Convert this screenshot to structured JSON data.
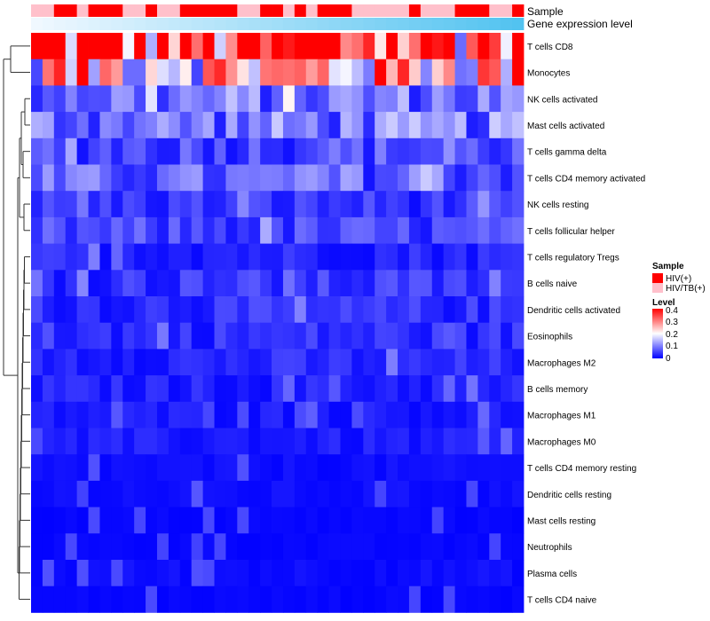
{
  "chart_data": {
    "type": "heatmap",
    "title": "",
    "annotation_labels": {
      "sample": "Sample",
      "expression": "Gene expression level"
    },
    "rows": [
      "T cells CD8",
      "Monocytes",
      "NK cells activated",
      "Mast cells activated",
      "T cells gamma delta",
      "T cells CD4 memory activated",
      "NK cells resting",
      "T cells follicular helper",
      "T cells regulatory  Tregs",
      "B cells naive",
      "Dendritic cells activated",
      "Eosinophils",
      "Macrophages M2",
      "B cells memory",
      "Macrophages M1",
      "Macrophages M0",
      "T cells CD4 memory resting",
      "Dendritic cells resting",
      "Mast cells resting",
      "Neutrophils",
      "Plasma cells",
      "T cells CD4 naive"
    ],
    "n_columns": 43,
    "sample_groups": [
      "HIV/TB(+)",
      "HIV/TB(+)",
      "HIV(+)",
      "HIV(+)",
      "HIV/TB(+)",
      "HIV(+)",
      "HIV(+)",
      "HIV(+)",
      "HIV/TB(+)",
      "HIV/TB(+)",
      "HIV(+)",
      "HIV/TB(+)",
      "HIV/TB(+)",
      "HIV(+)",
      "HIV(+)",
      "HIV(+)",
      "HIV(+)",
      "HIV(+)",
      "HIV/TB(+)",
      "HIV/TB(+)",
      "HIV(+)",
      "HIV(+)",
      "HIV/TB(+)",
      "HIV(+)",
      "HIV/TB(+)",
      "HIV(+)",
      "HIV(+)",
      "HIV(+)",
      "HIV/TB(+)",
      "HIV/TB(+)",
      "HIV/TB(+)",
      "HIV/TB(+)",
      "HIV/TB(+)",
      "HIV(+)",
      "HIV/TB(+)",
      "HIV/TB(+)",
      "HIV/TB(+)",
      "HIV(+)",
      "HIV(+)",
      "HIV(+)",
      "HIV/TB(+)",
      "HIV/TB(+)",
      "HIV(+)"
    ],
    "row_means": [
      0.36,
      0.25,
      0.09,
      0.09,
      0.06,
      0.07,
      0.04,
      0.05,
      0.03,
      0.04,
      0.035,
      0.035,
      0.03,
      0.025,
      0.02,
      0.02,
      0.01,
      0.01,
      0.005,
      0.005,
      0.01,
      0.005
    ],
    "legend": {
      "sample_title": "Sample",
      "sample_entries": [
        {
          "label": "HIV(+)",
          "color": "#ff0000"
        },
        {
          "label": "HIV/TB(+)",
          "color": "#ffc0cb"
        }
      ],
      "level_title": "Level",
      "level_ticks": [
        "0.4",
        "0.3",
        "0.2",
        "0.1",
        "0"
      ],
      "level_range": [
        0,
        0.4
      ],
      "colors": {
        "low": "#0000ff",
        "mid": "#ffffff",
        "high": "#ff0000"
      }
    }
  }
}
